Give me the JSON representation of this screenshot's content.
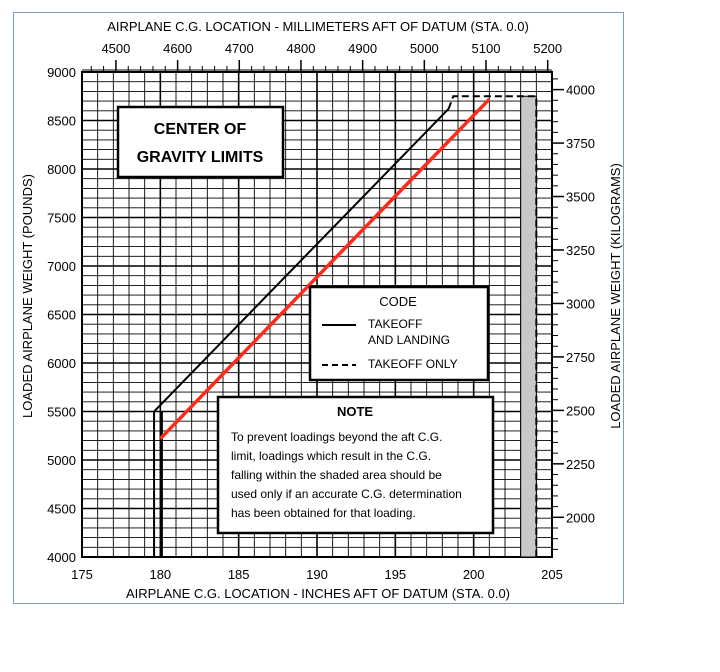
{
  "chart_data": {
    "type": "line",
    "title_lines": [
      "CENTER OF",
      "GRAVITY LIMITS"
    ],
    "xlabel": "AIRPLANE C.G. LOCATION - INCHES AFT OF DATUM (STA. 0.0)",
    "x2label": "AIRPLANE C.G. LOCATION - MILLIMETERS AFT OF DATUM (STA. 0.0)",
    "ylabel": "LOADED AIRPLANE WEIGHT (POUNDS)",
    "y2label": "LOADED AIRPLANE WEIGHT (KILOGRAMS)",
    "xlim": [
      175,
      205
    ],
    "ylim": [
      4000,
      9000
    ],
    "x_ticks": [
      "175",
      "180",
      "185",
      "190",
      "195",
      "200",
      "205"
    ],
    "y_ticks": [
      "4000",
      "4500",
      "5000",
      "5500",
      "6000",
      "6500",
      "7000",
      "7500",
      "8000",
      "8500",
      "9000"
    ],
    "x2_ticks": [
      {
        "label": "4500",
        "value": 4500
      },
      {
        "label": "4600",
        "value": 4600
      },
      {
        "label": "4700",
        "value": 4700
      },
      {
        "label": "4800",
        "value": 4800
      },
      {
        "label": "4900",
        "value": 4900
      },
      {
        "label": "5000",
        "value": 5000
      },
      {
        "label": "5100",
        "value": 5100
      },
      {
        "label": "5200",
        "value": 5200
      }
    ],
    "y2_ticks": [
      {
        "label": "2000",
        "value": 2000
      },
      {
        "label": "2250",
        "value": 2250
      },
      {
        "label": "2500",
        "value": 2500
      },
      {
        "label": "2750",
        "value": 2750
      },
      {
        "label": "3000",
        "value": 3000
      },
      {
        "label": "3250",
        "value": 3250
      },
      {
        "label": "3500",
        "value": 3500
      },
      {
        "label": "3750",
        "value": 3750
      },
      {
        "label": "4000",
        "value": 4000
      }
    ],
    "series": [
      {
        "name": "TAKEOFF AND LANDING",
        "style": "solid",
        "color": "#000000",
        "x": [
          179.6,
          179.6,
          198.4
        ],
        "y": [
          4000,
          5500,
          8620
        ]
      },
      {
        "name": "TAKEOFF ONLY",
        "style": "dashed",
        "color": "#000000",
        "x": [
          198.4,
          198.7,
          204.0,
          204.0
        ],
        "y": [
          8620,
          8750,
          8750,
          4000
        ]
      },
      {
        "style": "solid",
        "color": "#ff2a1a",
        "x": [
          180.0,
          201.0
        ],
        "y": [
          5220,
          8720
        ]
      }
    ],
    "envelope_aft_x": 180.1,
    "shaded_region": {
      "x": [
        203.0,
        204.0
      ],
      "y": [
        4000,
        8750
      ]
    },
    "legend": {
      "title": "CODE",
      "items": [
        {
          "label_lines": [
            "TAKEOFF",
            "AND LANDING"
          ],
          "style": "solid"
        },
        {
          "label_lines": [
            "TAKEOFF ONLY"
          ],
          "style": "dashed"
        }
      ]
    },
    "note": {
      "title": "NOTE",
      "lines": [
        "To prevent loadings beyond the aft C.G.",
        "limit, loadings which result in the C.G.",
        "falling within the shaded area should be",
        "used only if an accurate C.G. determination",
        "has been obtained for that loading."
      ]
    },
    "grid": true,
    "colors": {
      "grid": "#000000",
      "highlight_line": "#ff2a1a",
      "shade": "#c8c8c8",
      "frame": "#7a9cc7"
    }
  }
}
